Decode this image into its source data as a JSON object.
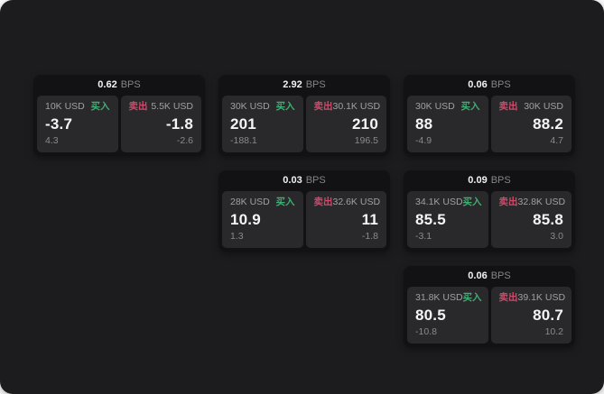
{
  "labels": {
    "buy": "买入",
    "sell": "卖出",
    "bps_unit": "BPS"
  },
  "colors": {
    "buy_accent": "#3fae73",
    "sell_accent": "#cf4a6b",
    "surface": "#1c1c1e",
    "card": "#121214",
    "panel": "#29292b",
    "text_primary": "#f5f5f7",
    "text_secondary": "#8a8a8f"
  },
  "cards": [
    {
      "bps": "0.62",
      "buy": {
        "amount": "10K USD",
        "value": "-3.7",
        "change": "4.3"
      },
      "sell": {
        "amount": "5.5K USD",
        "value": "-1.8",
        "change": "-2.6"
      }
    },
    {
      "bps": "2.92",
      "buy": {
        "amount": "30K USD",
        "value": "201",
        "change": "-188.1"
      },
      "sell": {
        "amount": "30.1K USD",
        "value": "210",
        "change": "196.5"
      }
    },
    {
      "bps": "0.06",
      "buy": {
        "amount": "30K USD",
        "value": "88",
        "change": "-4.9"
      },
      "sell": {
        "amount": "30K USD",
        "value": "88.2",
        "change": "4.7"
      }
    },
    {
      "bps": "0.03",
      "buy": {
        "amount": "28K USD",
        "value": "10.9",
        "change": "1.3"
      },
      "sell": {
        "amount": "32.6K USD",
        "value": "11",
        "change": "-1.8"
      }
    },
    {
      "bps": "0.09",
      "buy": {
        "amount": "34.1K USD",
        "value": "85.5",
        "change": "-3.1"
      },
      "sell": {
        "amount": "32.8K USD",
        "value": "85.8",
        "change": "3.0"
      }
    },
    {
      "bps": "0.06",
      "buy": {
        "amount": "31.8K USD",
        "value": "80.5",
        "change": "-10.8"
      },
      "sell": {
        "amount": "39.1K USD",
        "value": "80.7",
        "change": "10.2"
      }
    }
  ]
}
